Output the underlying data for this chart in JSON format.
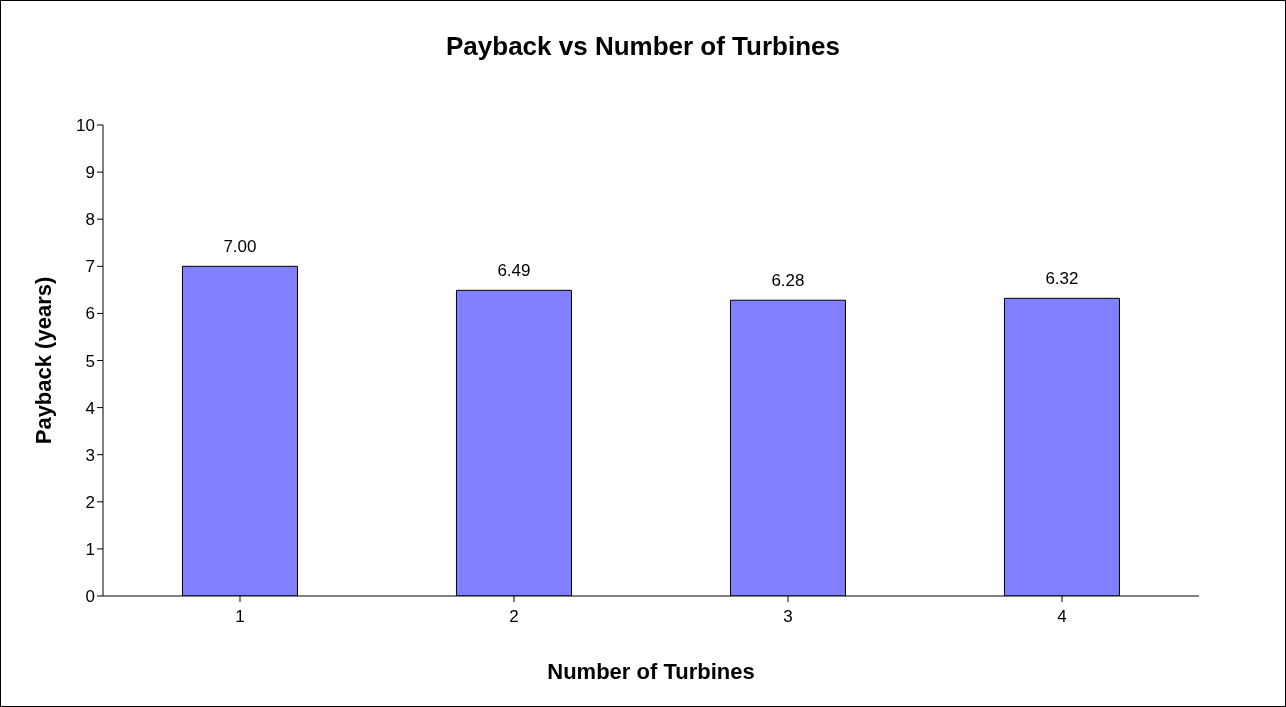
{
  "chart_data": {
    "type": "bar",
    "title": "Payback vs Number of Turbines",
    "xlabel": "Number of Turbines",
    "ylabel": "Payback (years)",
    "categories": [
      "1",
      "2",
      "3",
      "4"
    ],
    "values": [
      7,
      6.49,
      6.28,
      6.32
    ],
    "value_labels": [
      "7.00",
      "6.49",
      "6.28",
      "6.32"
    ],
    "color": "#8080ff",
    "ylim": [
      0,
      10
    ],
    "yticks": [
      0,
      1,
      2,
      3,
      4,
      5,
      6,
      7,
      8,
      9,
      10
    ],
    "grid": false,
    "legend": false
  }
}
